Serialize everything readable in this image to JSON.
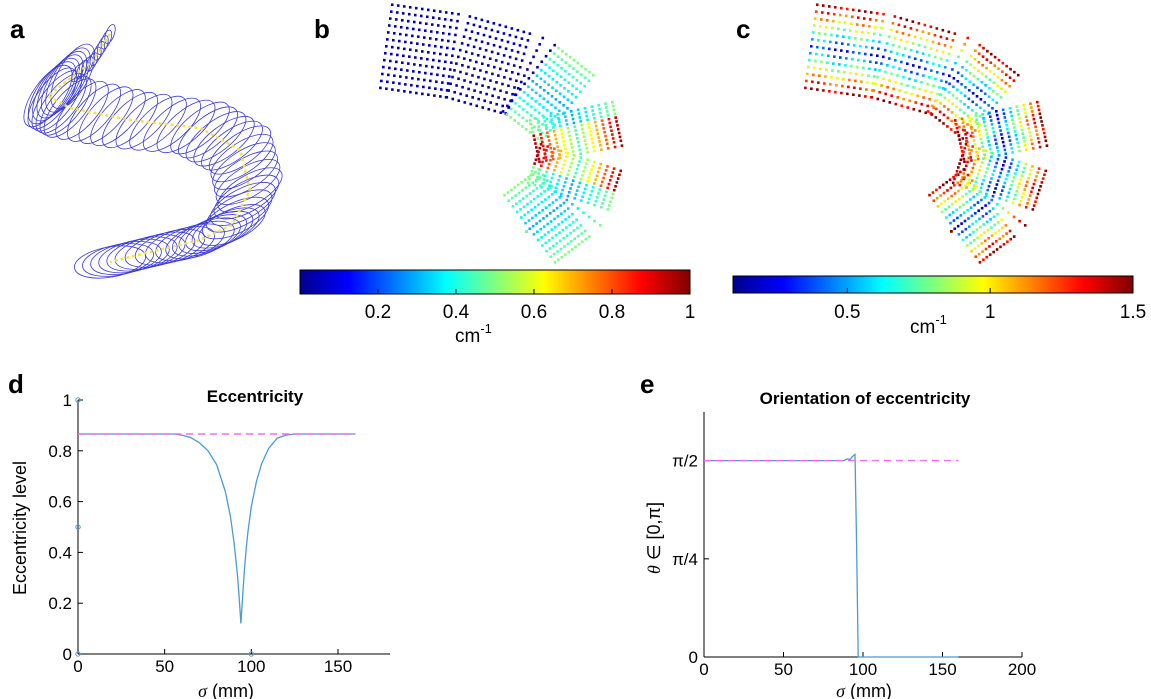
{
  "panels": {
    "a": {
      "letter": "a"
    },
    "b": {
      "letter": "b"
    },
    "c": {
      "letter": "c"
    },
    "d": {
      "letter": "d"
    },
    "e": {
      "letter": "e"
    }
  },
  "colorbar_b": {
    "ticks": [
      "0.2",
      "0.4",
      "0.6",
      "0.8",
      "1"
    ],
    "tick_values": [
      0.2,
      0.4,
      0.6,
      0.8,
      1.0
    ],
    "range": [
      0.0,
      1.0
    ],
    "unit": "cm",
    "unit_exp": "-1"
  },
  "colorbar_c": {
    "ticks": [
      "0.5",
      "1",
      "1.5"
    ],
    "tick_values": [
      0.5,
      1.0,
      1.5
    ],
    "range": [
      0.1,
      1.5
    ],
    "unit": "cm",
    "unit_exp": "-1"
  },
  "colors": {
    "curve": "#4a9bd6",
    "reference": "#f06ee8",
    "tube": "#3b3bd6",
    "centerline": "#f4e14b"
  },
  "chart_data": [
    {
      "id": "d",
      "type": "line",
      "title": "Eccentricity",
      "xlabel_var": "σ",
      "xlabel_unit": " (mm)",
      "ylabel": "Eccentricity level",
      "xlim": [
        0,
        180
      ],
      "ylim": [
        0,
        1
      ],
      "xticks": [
        0,
        50,
        100,
        150
      ],
      "yticks": [
        0,
        0.2,
        0.4,
        0.6,
        0.8,
        1
      ],
      "ytick_labels": [
        "0",
        "0.2",
        "0.4",
        "0.6",
        "0.8",
        "1"
      ],
      "series": [
        {
          "style": "solid",
          "x": [
            0,
            55,
            60,
            65,
            70,
            75,
            80,
            85,
            88,
            90,
            92,
            93,
            94,
            95,
            96,
            97,
            98,
            100,
            103,
            106,
            110,
            115,
            120,
            125,
            130,
            160
          ],
          "y": [
            0.866,
            0.866,
            0.862,
            0.852,
            0.832,
            0.8,
            0.745,
            0.64,
            0.54,
            0.44,
            0.31,
            0.22,
            0.12,
            0.23,
            0.33,
            0.41,
            0.48,
            0.58,
            0.68,
            0.75,
            0.81,
            0.85,
            0.862,
            0.866,
            0.866,
            0.866
          ]
        },
        {
          "style": "dashed",
          "x": [
            0,
            160
          ],
          "y": [
            0.866,
            0.866
          ]
        }
      ],
      "markers": [
        [
          0,
          1.0
        ],
        [
          0,
          0.5
        ],
        [
          0,
          0.0
        ],
        [
          100,
          0.0
        ]
      ]
    },
    {
      "id": "e",
      "type": "line",
      "title": "Orientation of eccentricity",
      "xlabel_var": "σ",
      "xlabel_unit": " (mm)",
      "ylabel_parts": [
        "θ",
        " ∈ [0,π]"
      ],
      "xlim": [
        0,
        200
      ],
      "ylim": [
        0,
        1.96
      ],
      "xticks": [
        0,
        50,
        100,
        150,
        200
      ],
      "yticks": [
        0,
        0.7854,
        1.5708
      ],
      "ytick_labels": [
        "0",
        "π/4",
        "π/2"
      ],
      "series": [
        {
          "style": "solid",
          "x": [
            0,
            88,
            90,
            92,
            93,
            95,
            96,
            97,
            98,
            160
          ],
          "y": [
            1.5708,
            1.5708,
            1.585,
            1.58,
            1.6,
            1.62,
            0.9,
            0.0,
            0.0,
            0.0
          ]
        },
        {
          "style": "dashed",
          "x": [
            0,
            160
          ],
          "y": [
            1.5708,
            1.5708
          ]
        }
      ]
    }
  ]
}
